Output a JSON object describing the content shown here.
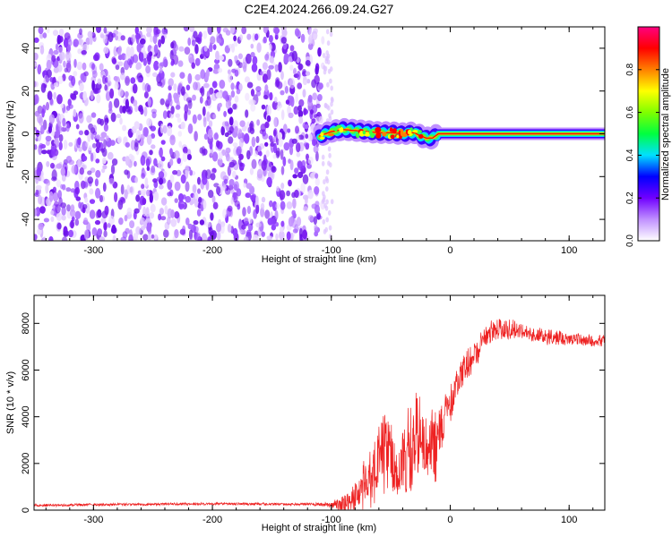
{
  "figure_title": "C2E4.2024.266.09.24.G27",
  "colors": {
    "snr_line": "#ee2222",
    "axis": "#000000",
    "ridge": "#ff0000",
    "speckle": "#7a1cf0"
  },
  "chart_data": [
    {
      "type": "heatmap",
      "title": "",
      "xlabel": "Height of straight line (km)",
      "ylabel": "Frequency (Hz)",
      "xlim": [
        -350,
        130
      ],
      "ylim": [
        -50,
        50
      ],
      "xticks": [
        -300,
        -200,
        -100,
        0,
        100
      ],
      "yticks": [
        -40,
        -20,
        0,
        20,
        40
      ],
      "grid": false,
      "colorbar": {
        "label": "Normalized spectral amplitude",
        "range": [
          0,
          1
        ],
        "ticks": [
          0.0,
          0.2,
          0.4,
          0.6,
          0.8
        ],
        "colors": [
          "#ffffff",
          "#c090ff",
          "#7000ff",
          "#0000ff",
          "#00e0ff",
          "#00ff40",
          "#80ff00",
          "#ffff00",
          "#ff8000",
          "#ff0000",
          "#ff0080"
        ]
      },
      "noise_region_x": [
        -350,
        -107
      ],
      "ridge": {
        "x": [
          -110,
          -100,
          -90,
          -80,
          -70,
          -60,
          -50,
          -40,
          -30,
          -25,
          -20,
          -15,
          -10,
          0,
          50,
          130
        ],
        "y": [
          -1,
          1,
          2,
          1.5,
          1,
          0.5,
          0.5,
          0,
          0.5,
          -1,
          -2,
          -2,
          0,
          0,
          0,
          0
        ]
      }
    },
    {
      "type": "line",
      "title": "",
      "xlabel": "Height of straight line (km)",
      "ylabel": "SNR (10 * v/v)",
      "xlim": [
        -350,
        130
      ],
      "ylim": [
        0,
        9200
      ],
      "xticks": [
        -300,
        -200,
        -100,
        0,
        100
      ],
      "yticks": [
        0,
        2000,
        4000,
        6000,
        8000
      ],
      "grid": false,
      "series": [
        {
          "envelope_x": [
            -350,
            -300,
            -200,
            -120,
            -100,
            -92,
            -85,
            -80,
            -75,
            -70,
            -65,
            -60,
            -55,
            -50,
            -45,
            -40,
            -35,
            -30,
            -27,
            -24,
            -20,
            -15,
            -10,
            -5,
            0,
            10,
            20,
            30,
            40,
            50,
            60,
            70,
            80,
            100,
            115,
            130
          ],
          "envelope_y": [
            250,
            280,
            320,
            300,
            320,
            600,
            800,
            1100,
            1500,
            2400,
            2800,
            3500,
            4200,
            4000,
            3500,
            3800,
            4500,
            4400,
            5200,
            4600,
            4200,
            4000,
            4200,
            4600,
            5300,
            6500,
            7200,
            7900,
            8200,
            8100,
            8000,
            7800,
            7700,
            7600,
            7500,
            7500
          ],
          "noise_y": [
            60,
            60,
            60,
            60,
            120,
            500,
            600,
            700,
            900,
            1300,
            1500,
            1700,
            2000,
            1900,
            1800,
            1800,
            1900,
            1900,
            2000,
            1800,
            1500,
            1300,
            1200,
            1000,
            900,
            750,
            700,
            650,
            500,
            450,
            400,
            380,
            350,
            300,
            280,
            280
          ],
          "deep_dips": [
            [
              -62,
              900
            ],
            [
              -43,
              800
            ],
            [
              -37,
              500
            ],
            [
              -33,
              700
            ],
            [
              -25,
              2500
            ],
            [
              -21,
              1500
            ],
            [
              -13,
              1200
            ]
          ]
        }
      ]
    }
  ]
}
